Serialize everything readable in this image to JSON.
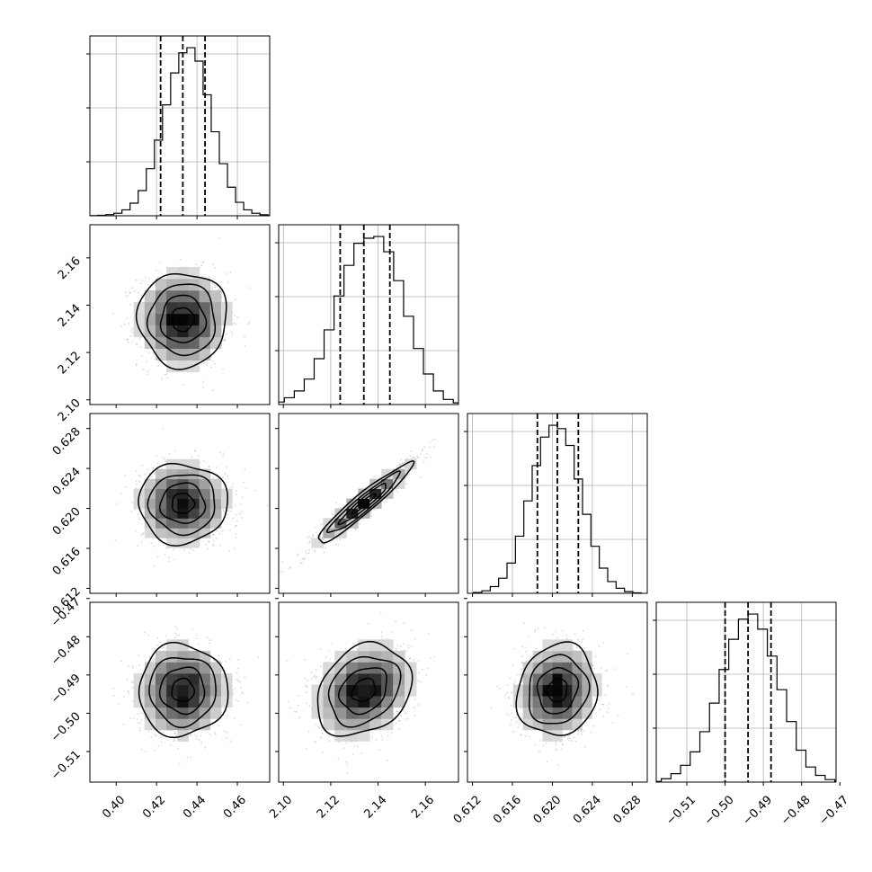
{
  "chart_data": {
    "type": "corner",
    "grid": true,
    "parameters": [
      {
        "median": 0.433,
        "q16": 0.422,
        "q84": 0.444,
        "sigma": 0.011,
        "range": [
          0.387,
          0.476
        ],
        "ticks": [
          "0.40",
          "0.42",
          "0.44",
          "0.46"
        ],
        "hist_bins": [
          0.001,
          0.003,
          0.007,
          0.015,
          0.035,
          0.075,
          0.15,
          0.28,
          0.45,
          0.66,
          0.85,
          0.97,
          1.0,
          0.92,
          0.72,
          0.5,
          0.31,
          0.17,
          0.08,
          0.035,
          0.015,
          0.006,
          0.002
        ]
      },
      {
        "median": 2.134,
        "q16": 2.124,
        "q84": 2.145,
        "sigma": 0.01,
        "range": [
          2.098,
          2.174
        ],
        "ticks": [
          "2.10",
          "2.12",
          "2.14",
          "2.16"
        ],
        "hist_bins": [
          0.005,
          0.015,
          0.04,
          0.08,
          0.15,
          0.27,
          0.44,
          0.64,
          0.82,
          0.95,
          0.98,
          0.99,
          0.9,
          0.73,
          0.52,
          0.33,
          0.18,
          0.08,
          0.03,
          0.01
        ]
      },
      {
        "median": 0.6205,
        "q16": 0.6185,
        "q84": 0.6226,
        "sigma": 0.002,
        "range": [
          0.6115,
          0.6295
        ],
        "ticks": [
          "0.612",
          "0.616",
          "0.620",
          "0.624",
          "0.628"
        ],
        "hist_bins": [
          0.005,
          0.015,
          0.04,
          0.09,
          0.18,
          0.34,
          0.55,
          0.76,
          0.93,
          1.0,
          0.98,
          0.88,
          0.68,
          0.47,
          0.28,
          0.15,
          0.07,
          0.03,
          0.01,
          0.003
        ]
      },
      {
        "median": -0.494,
        "q16": -0.5,
        "q84": -0.488,
        "sigma": 0.006,
        "range": [
          -0.518,
          -0.471
        ],
        "ticks": [
          "−0.51",
          "−0.50",
          "−0.49",
          "−0.48",
          "−0.47"
        ],
        "hist_bins": [
          0.004,
          0.02,
          0.05,
          0.1,
          0.18,
          0.3,
          0.47,
          0.67,
          0.85,
          0.97,
          1.0,
          0.91,
          0.75,
          0.55,
          0.36,
          0.19,
          0.09,
          0.04,
          0.015,
          0.005
        ]
      }
    ],
    "correlations": [
      {
        "pair": [
          1,
          0
        ],
        "rho": 0.0
      },
      {
        "pair": [
          2,
          0
        ],
        "rho": 0.0
      },
      {
        "pair": [
          2,
          1
        ],
        "rho": 0.95
      },
      {
        "pair": [
          3,
          0
        ],
        "rho": 0.0
      },
      {
        "pair": [
          3,
          1
        ],
        "rho": 0.25
      },
      {
        "pair": [
          3,
          2
        ],
        "rho": 0.1
      }
    ]
  }
}
